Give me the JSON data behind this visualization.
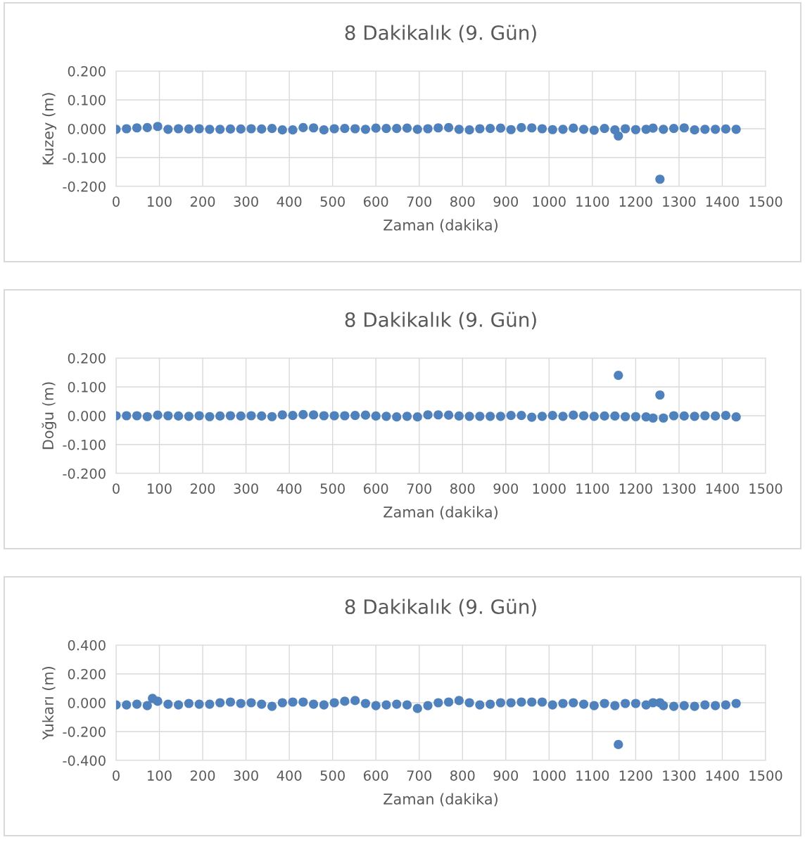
{
  "chart_data": [
    {
      "type": "scatter",
      "title": "8 Dakikalık (9. Gün)",
      "xlabel": "Zaman (dakika)",
      "ylabel": "Kuzey (m)",
      "xlim": [
        0,
        1500
      ],
      "xticks": [
        0,
        100,
        200,
        300,
        400,
        500,
        600,
        700,
        800,
        900,
        1000,
        1100,
        1200,
        1300,
        1400,
        1500
      ],
      "ylim": [
        -0.2,
        0.2
      ],
      "yticks": [
        {
          "value": -0.2,
          "label": "-0.200"
        },
        {
          "value": -0.1,
          "label": "-0.100"
        },
        {
          "value": 0,
          "label": "0.000"
        },
        {
          "value": 0.1,
          "label": "0.100"
        },
        {
          "value": 0.2,
          "label": "0.200"
        }
      ],
      "grid": true,
      "marker": "circle",
      "series": [
        {
          "color": "#4f81bd",
          "x": [
            0,
            24,
            48,
            72,
            96,
            120,
            144,
            168,
            192,
            216,
            240,
            264,
            288,
            312,
            336,
            360,
            384,
            408,
            432,
            456,
            480,
            504,
            528,
            552,
            576,
            600,
            624,
            648,
            672,
            696,
            720,
            744,
            768,
            792,
            816,
            840,
            864,
            888,
            912,
            936,
            960,
            984,
            1008,
            1032,
            1056,
            1080,
            1104,
            1128,
            1152,
            1160,
            1176,
            1200,
            1224,
            1240,
            1256,
            1264,
            1288,
            1312,
            1336,
            1360,
            1384,
            1408,
            1432
          ],
          "values": [
            -0.002,
            0,
            0.003,
            0.004,
            0.008,
            -0.002,
            0,
            -0.001,
            0,
            -0.002,
            -0.002,
            -0.001,
            -0.001,
            0,
            -0.001,
            0.001,
            -0.004,
            -0.004,
            0.004,
            0.003,
            -0.004,
            0,
            0.001,
            0,
            -0.002,
            0.002,
            0.001,
            0.001,
            0.002,
            -0.002,
            0,
            0.003,
            0.004,
            -0.002,
            -0.004,
            0,
            0.001,
            0.002,
            -0.003,
            0.004,
            0.003,
            0,
            -0.003,
            -0.002,
            0.002,
            -0.002,
            -0.005,
            0.001,
            -0.004,
            -0.025,
            0,
            -0.003,
            -0.002,
            0.002,
            -0.175,
            -0.002,
            0.001,
            0.003,
            -0.004,
            -0.002,
            -0.002,
            -0.001,
            -0.002
          ]
        }
      ]
    },
    {
      "type": "scatter",
      "title": "8 Dakikalık (9. Gün)",
      "xlabel": "Zaman (dakika)",
      "ylabel": "Doğu (m)",
      "xlim": [
        0,
        1500
      ],
      "xticks": [
        0,
        100,
        200,
        300,
        400,
        500,
        600,
        700,
        800,
        900,
        1000,
        1100,
        1200,
        1300,
        1400,
        1500
      ],
      "ylim": [
        -0.2,
        0.2
      ],
      "yticks": [
        {
          "value": -0.2,
          "label": "-0.200"
        },
        {
          "value": -0.1,
          "label": "-0.100"
        },
        {
          "value": 0,
          "label": "0.000"
        },
        {
          "value": 0.1,
          "label": "0.100"
        },
        {
          "value": 0.2,
          "label": "0.200"
        }
      ],
      "grid": true,
      "marker": "circle",
      "series": [
        {
          "color": "#4f81bd",
          "x": [
            0,
            24,
            48,
            72,
            96,
            120,
            144,
            168,
            192,
            216,
            240,
            264,
            288,
            312,
            336,
            360,
            384,
            408,
            432,
            456,
            480,
            504,
            528,
            552,
            576,
            600,
            624,
            648,
            672,
            696,
            720,
            744,
            768,
            792,
            816,
            840,
            864,
            888,
            912,
            936,
            960,
            984,
            1008,
            1032,
            1056,
            1080,
            1104,
            1128,
            1152,
            1160,
            1176,
            1200,
            1224,
            1240,
            1256,
            1264,
            1288,
            1312,
            1336,
            1360,
            1384,
            1408,
            1432
          ],
          "values": [
            0,
            0,
            0,
            -0.003,
            0.002,
            0,
            -0.001,
            -0.002,
            0,
            -0.003,
            -0.001,
            0,
            -0.001,
            0,
            -0.001,
            -0.003,
            0.003,
            0.001,
            0.004,
            0.003,
            0,
            0,
            0,
            0.001,
            0.002,
            -0.001,
            -0.002,
            -0.004,
            -0.002,
            -0.004,
            0.003,
            0.003,
            0.002,
            -0.001,
            -0.002,
            -0.002,
            -0.002,
            -0.002,
            0.001,
            0.001,
            -0.005,
            -0.002,
            0.001,
            -0.002,
            0.002,
            0,
            -0.002,
            -0.001,
            -0.001,
            0.14,
            -0.003,
            -0.003,
            -0.004,
            -0.008,
            0.072,
            -0.008,
            0,
            -0.001,
            -0.002,
            0,
            -0.001,
            0.001,
            -0.004
          ]
        }
      ]
    },
    {
      "type": "scatter",
      "title": "8 Dakikalık (9. Gün)",
      "xlabel": "Zaman (dakika)",
      "ylabel": "Yukarı (m)",
      "xlim": [
        0,
        1500
      ],
      "xticks": [
        0,
        100,
        200,
        300,
        400,
        500,
        600,
        700,
        800,
        900,
        1000,
        1100,
        1200,
        1300,
        1400,
        1500
      ],
      "ylim": [
        -0.4,
        0.4
      ],
      "yticks": [
        {
          "value": -0.4,
          "label": "-0.400"
        },
        {
          "value": -0.2,
          "label": "-0.200"
        },
        {
          "value": 0,
          "label": "0.000"
        },
        {
          "value": 0.2,
          "label": "0.200"
        },
        {
          "value": 0.4,
          "label": "0.400"
        }
      ],
      "grid": true,
      "marker": "circle",
      "series": [
        {
          "color": "#4f81bd",
          "x": [
            0,
            24,
            48,
            72,
            84,
            96,
            120,
            144,
            168,
            192,
            216,
            240,
            264,
            288,
            312,
            336,
            360,
            384,
            408,
            432,
            456,
            480,
            504,
            528,
            552,
            576,
            600,
            624,
            648,
            672,
            696,
            720,
            744,
            768,
            792,
            816,
            840,
            864,
            888,
            912,
            936,
            960,
            984,
            1008,
            1032,
            1056,
            1080,
            1104,
            1128,
            1152,
            1160,
            1176,
            1200,
            1224,
            1240,
            1256,
            1264,
            1288,
            1312,
            1336,
            1360,
            1384,
            1408,
            1432
          ],
          "values": [
            -0.015,
            -0.015,
            -0.01,
            -0.02,
            0.03,
            0.01,
            -0.01,
            -0.015,
            -0.005,
            -0.01,
            -0.01,
            0,
            0.005,
            -0.005,
            0,
            -0.01,
            -0.025,
            0,
            0.005,
            0.005,
            -0.01,
            -0.015,
            0,
            0.01,
            0.015,
            -0.005,
            -0.02,
            -0.015,
            -0.01,
            -0.015,
            -0.04,
            -0.02,
            0,
            0.005,
            0.015,
            0,
            -0.015,
            -0.01,
            0,
            0,
            0.005,
            0.005,
            0.005,
            -0.015,
            -0.005,
            0,
            -0.01,
            -0.02,
            -0.005,
            -0.02,
            -0.29,
            -0.005,
            -0.005,
            -0.015,
            0,
            0,
            -0.02,
            -0.025,
            -0.02,
            -0.025,
            -0.015,
            -0.02,
            -0.015,
            -0.005
          ]
        }
      ]
    }
  ]
}
